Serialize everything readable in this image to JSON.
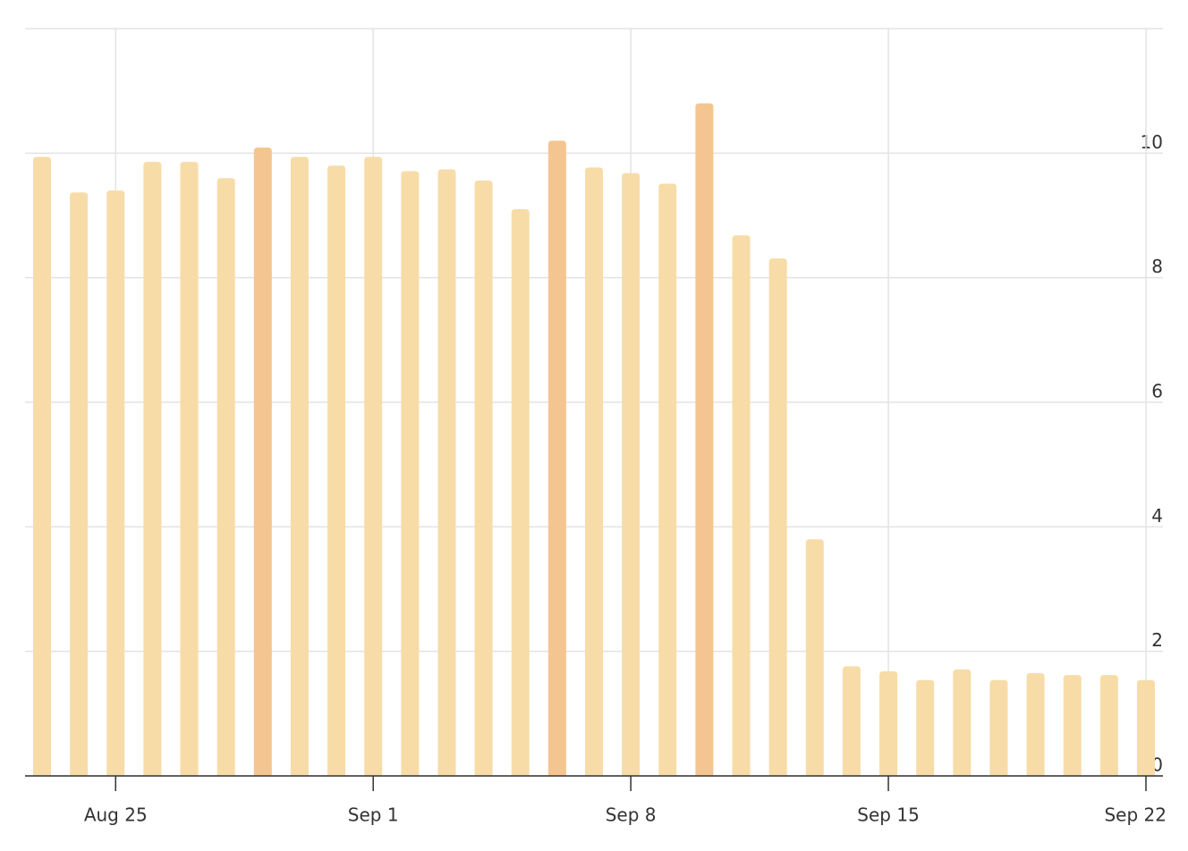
{
  "chart_data": {
    "type": "bar",
    "categories": [
      null,
      null,
      "Aug 25",
      null,
      null,
      null,
      null,
      null,
      null,
      "Sep 1",
      null,
      null,
      null,
      null,
      null,
      null,
      "Sep 8",
      null,
      null,
      null,
      null,
      null,
      null,
      "Sep 15",
      null,
      null,
      null,
      null,
      null,
      null,
      "Sep 22"
    ],
    "values": [
      9.94,
      9.37,
      9.4,
      9.86,
      9.86,
      9.6,
      10.09,
      9.94,
      9.8,
      9.94,
      9.71,
      9.74,
      9.56,
      9.1,
      10.2,
      9.77,
      9.68,
      9.51,
      10.8,
      8.68,
      8.31,
      3.8,
      1.76,
      1.68,
      1.54,
      1.71,
      1.54,
      1.65,
      1.62,
      1.62,
      1.54
    ],
    "colors": [
      "#f7dca8",
      "#f7dca8",
      "#f7dca8",
      "#f7dca8",
      "#f7dca8",
      "#f7dca8",
      "#f4c590",
      "#f7dca8",
      "#f7dca8",
      "#f7dca8",
      "#f7dca8",
      "#f7dca8",
      "#f7dca8",
      "#f7dca8",
      "#f4c590",
      "#f7dca8",
      "#f7dca8",
      "#f7dca8",
      "#f4c590",
      "#f7dca8",
      "#f7dca8",
      "#f7dca8",
      "#f7dca8",
      "#f7dca8",
      "#f7dca8",
      "#f7dca8",
      "#f7dca8",
      "#f7dca8",
      "#f7dca8",
      "#f7dca8",
      "#f7dca8"
    ],
    "ylim": [
      0,
      12
    ],
    "yticks": [
      0,
      2,
      4,
      6,
      8,
      10
    ],
    "grid": true
  }
}
